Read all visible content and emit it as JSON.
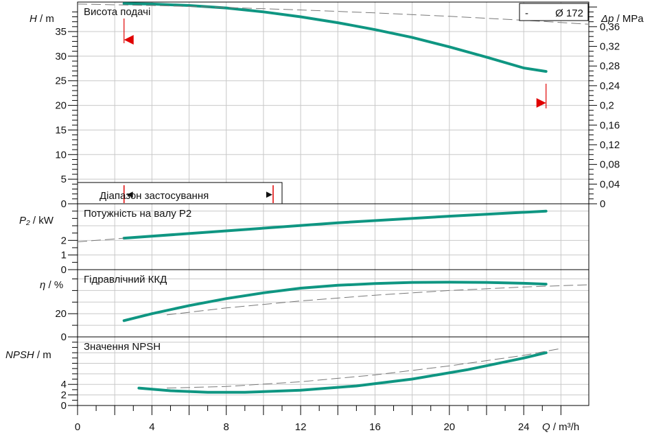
{
  "colors": {
    "curve": "#0f9682",
    "range": "#e00000",
    "grid": "#c8c8c8",
    "dash": "#777777"
  },
  "axis_labels": {
    "H_symbol": "H",
    "H_unit": "/ m",
    "dp_symbol": "Δp",
    "dp_unit": "/ MPa",
    "P2_symbol": "P₂",
    "P2_unit": "/ kW",
    "eta_symbol": "η",
    "eta_unit": "/ %",
    "npsh_symbol": "NPSH",
    "npsh_unit": "/ m",
    "Q_symbol": "Q",
    "Q_unit": "/ m³/h"
  },
  "legend": {
    "dash": "-",
    "impeller": "Ø 172"
  },
  "operating_range": {
    "label": "Діапазон застосування",
    "q_min": 2.5,
    "q_max": 25.2,
    "arrow_left": "◄",
    "arrow_right": "►"
  },
  "chart_data": [
    {
      "type": "line",
      "title": "Висота подачі",
      "xlabel": "Q / m³/h",
      "ylabel": "H / m",
      "y2label": "Δp / MPa",
      "xlim": [
        0,
        27.5
      ],
      "ylim": [
        0,
        41
      ],
      "y2lim": [
        0,
        0.41
      ],
      "x_ticks": [
        0,
        4,
        8,
        12,
        16,
        20,
        24
      ],
      "y_ticks": [
        0,
        5,
        10,
        15,
        20,
        25,
        30,
        35
      ],
      "y2_ticks": [
        "0",
        "0,04",
        "0,08",
        "0,12",
        "0,16",
        "0,2",
        "0,24",
        "0,28",
        "0,32",
        "0,36"
      ],
      "series": [
        {
          "style": "solid",
          "x": [
            2.5,
            4,
            6,
            8,
            10,
            12,
            14,
            16,
            18,
            20,
            22,
            24,
            25.2
          ],
          "y": [
            40.7,
            40.6,
            40.3,
            39.8,
            39.0,
            38.0,
            36.8,
            35.4,
            33.8,
            31.9,
            29.8,
            27.6,
            26.9
          ]
        },
        {
          "style": "dashed",
          "x": [
            0,
            4,
            8,
            12,
            16,
            20,
            24,
            27.5
          ],
          "y": [
            40.6,
            40.3,
            39.9,
            39.4,
            38.8,
            38.1,
            37.3,
            36.5
          ]
        }
      ]
    },
    {
      "type": "line",
      "title": "Потужність на валу P2",
      "ylabel": "P₂ / kW",
      "xlim": [
        0,
        27.5
      ],
      "ylim": [
        0,
        4.5
      ],
      "y_ticks": [
        0,
        1,
        2
      ],
      "series": [
        {
          "style": "solid",
          "x": [
            2.5,
            8,
            14,
            20,
            25.2
          ],
          "y": [
            2.15,
            2.65,
            3.2,
            3.65,
            4.0
          ]
        },
        {
          "style": "dashed",
          "x": [
            0,
            2.5
          ],
          "y": [
            1.9,
            2.15
          ]
        }
      ]
    },
    {
      "type": "line",
      "title": "Гідравлічний ККД",
      "ylabel": "η / %",
      "xlim": [
        0,
        27.5
      ],
      "ylim": [
        0,
        58
      ],
      "y_ticks": [
        0,
        20
      ],
      "series": [
        {
          "style": "solid",
          "x": [
            2.5,
            4,
            6,
            8,
            10,
            12,
            14,
            16,
            18,
            20,
            22,
            24,
            25.2
          ],
          "y": [
            14,
            20,
            27,
            33,
            38,
            42,
            44.5,
            46,
            47,
            47.2,
            47.0,
            46.2,
            45.5
          ]
        },
        {
          "style": "dashed",
          "x": [
            4.8,
            8,
            12,
            16,
            20,
            24,
            27.5
          ],
          "y": [
            19,
            25,
            31,
            36,
            40,
            43,
            45
          ]
        }
      ]
    },
    {
      "type": "line",
      "title": "Значення NPSH",
      "ylabel": "NPSH / m",
      "xlim": [
        0,
        27.5
      ],
      "ylim": [
        0,
        13
      ],
      "y_ticks": [
        0,
        2,
        4
      ],
      "series": [
        {
          "style": "solid",
          "x": [
            3.3,
            5,
            7,
            8,
            9,
            12,
            15,
            18,
            21,
            24,
            25.2
          ],
          "y": [
            3.3,
            2.8,
            2.5,
            2.5,
            2.5,
            2.9,
            3.7,
            5.0,
            6.8,
            9.0,
            10.0
          ]
        },
        {
          "style": "dashed",
          "x": [
            4.8,
            8,
            12,
            16,
            20,
            24,
            26
          ],
          "y": [
            3.3,
            3.6,
            4.5,
            5.8,
            7.5,
            9.5,
            10.8
          ]
        }
      ]
    }
  ]
}
